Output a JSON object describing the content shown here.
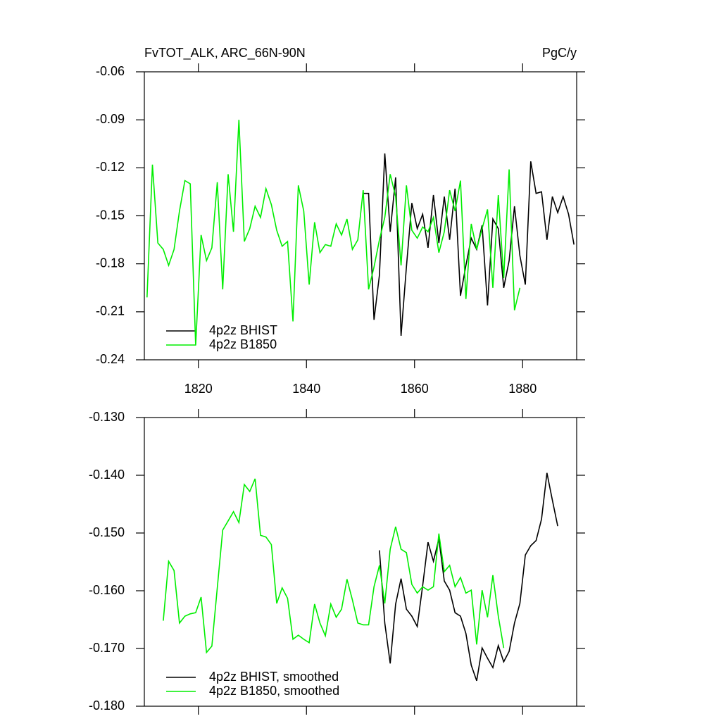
{
  "chart_data": [
    {
      "type": "line",
      "title": "FvTOT_ALK, ARC_66N-90N",
      "units": "PgC/y",
      "xlim": [
        1810,
        1890
      ],
      "xticks": [
        1820,
        1840,
        1860,
        1880
      ],
      "xtick_labels": true,
      "ylim": [
        -0.24,
        -0.06
      ],
      "yticks": [
        -0.24,
        -0.21,
        -0.18,
        -0.15,
        -0.12,
        -0.09,
        -0.06
      ],
      "legend": "lower left",
      "series": [
        {
          "name": "4p2z BHIST",
          "color": "#000000",
          "x": [
            1850.5,
            1851.5,
            1852.5,
            1853.5,
            1854.5,
            1855.5,
            1856.5,
            1857.5,
            1858.5,
            1859.5,
            1860.5,
            1861.5,
            1862.5,
            1863.5,
            1864.5,
            1865.5,
            1866.5,
            1867.5,
            1868.5,
            1869.5,
            1870.5,
            1871.5,
            1872.5,
            1873.5,
            1874.5,
            1875.5,
            1876.5,
            1877.5,
            1878.5,
            1879.5,
            1880.5,
            1881.5,
            1882.5,
            1883.5,
            1884.5,
            1885.5,
            1886.5,
            1887.5,
            1888.5,
            1889.5
          ],
          "values": [
            -0.136,
            -0.136,
            -0.215,
            -0.187,
            -0.111,
            -0.16,
            -0.126,
            -0.225,
            -0.182,
            -0.142,
            -0.158,
            -0.149,
            -0.17,
            -0.137,
            -0.167,
            -0.138,
            -0.165,
            -0.133,
            -0.2,
            -0.181,
            -0.164,
            -0.171,
            -0.156,
            -0.206,
            -0.152,
            -0.158,
            -0.195,
            -0.178,
            -0.144,
            -0.175,
            -0.193,
            -0.116,
            -0.136,
            -0.135,
            -0.165,
            -0.138,
            -0.148,
            -0.138,
            -0.149,
            -0.168
          ]
        },
        {
          "name": "4p2z B1850",
          "color": "#00ee00",
          "x": [
            1810.5,
            1811.5,
            1812.5,
            1813.5,
            1814.5,
            1815.5,
            1816.5,
            1817.5,
            1818.5,
            1819.5,
            1820.5,
            1821.5,
            1822.5,
            1823.5,
            1824.5,
            1825.5,
            1826.5,
            1827.5,
            1828.5,
            1829.5,
            1830.5,
            1831.5,
            1832.5,
            1833.5,
            1834.5,
            1835.5,
            1836.5,
            1837.5,
            1838.5,
            1839.5,
            1840.5,
            1841.5,
            1842.5,
            1843.5,
            1844.5,
            1845.5,
            1846.5,
            1847.5,
            1848.5,
            1849.5,
            1850.5,
            1851.5,
            1852.5,
            1853.5,
            1854.5,
            1855.5,
            1856.5,
            1857.5,
            1858.5,
            1859.5,
            1860.5,
            1861.5,
            1862.5,
            1863.5,
            1864.5,
            1865.5,
            1866.5,
            1867.5,
            1868.5,
            1869.5,
            1870.5,
            1871.5,
            1872.5,
            1873.5,
            1874.5,
            1875.5,
            1876.5,
            1877.5,
            1878.5,
            1879.5
          ],
          "values": [
            -0.201,
            -0.118,
            -0.167,
            -0.171,
            -0.181,
            -0.171,
            -0.147,
            -0.128,
            -0.13,
            -0.231,
            -0.162,
            -0.178,
            -0.17,
            -0.129,
            -0.196,
            -0.124,
            -0.16,
            -0.09,
            -0.166,
            -0.158,
            -0.144,
            -0.151,
            -0.133,
            -0.143,
            -0.159,
            -0.169,
            -0.166,
            -0.216,
            -0.131,
            -0.147,
            -0.193,
            -0.154,
            -0.173,
            -0.168,
            -0.169,
            -0.155,
            -0.162,
            -0.152,
            -0.171,
            -0.165,
            -0.134,
            -0.196,
            -0.182,
            -0.165,
            -0.151,
            -0.124,
            -0.138,
            -0.181,
            -0.131,
            -0.159,
            -0.164,
            -0.157,
            -0.16,
            -0.151,
            -0.173,
            -0.16,
            -0.134,
            -0.147,
            -0.128,
            -0.202,
            -0.155,
            -0.171,
            -0.158,
            -0.146,
            -0.195,
            -0.137,
            -0.189,
            -0.121,
            -0.209,
            -0.195
          ]
        }
      ]
    },
    {
      "type": "line",
      "xlim": [
        1810,
        1890
      ],
      "xticks": [
        1820,
        1840,
        1860,
        1880
      ],
      "xtick_labels": false,
      "ylim": [
        -0.18,
        -0.13
      ],
      "yticks": [
        {
          "value": -0.18,
          "label": "-0.180"
        },
        {
          "value": -0.17,
          "label": "-0.170"
        },
        {
          "value": -0.16,
          "label": "-0.160"
        },
        {
          "value": -0.15,
          "label": "-0.150"
        },
        {
          "value": -0.14,
          "label": "-0.140"
        },
        {
          "value": -0.13,
          "label": "-0.130"
        }
      ],
      "legend": "lower left",
      "series": [
        {
          "name": "4p2z BHIST, smoothed",
          "color": "#000000",
          "x": [
            1853.5,
            1854.5,
            1855.5,
            1856.5,
            1857.5,
            1858.5,
            1859.5,
            1860.5,
            1861.5,
            1862.5,
            1863.5,
            1864.5,
            1865.5,
            1866.5,
            1867.5,
            1868.5,
            1869.5,
            1870.5,
            1871.5,
            1872.5,
            1873.5,
            1874.5,
            1875.5,
            1876.5,
            1877.5,
            1878.5,
            1879.5,
            1880.5,
            1881.5,
            1882.5,
            1883.5,
            1884.5,
            1885.5,
            1886.5
          ],
          "values": [
            -0.153,
            -0.1656,
            -0.1726,
            -0.1623,
            -0.1579,
            -0.1632,
            -0.1644,
            -0.1662,
            -0.1591,
            -0.1516,
            -0.1549,
            -0.151,
            -0.1583,
            -0.1599,
            -0.1638,
            -0.1644,
            -0.1674,
            -0.1729,
            -0.1756,
            -0.1699,
            -0.1717,
            -0.1733,
            -0.1695,
            -0.1723,
            -0.1705,
            -0.1656,
            -0.1622,
            -0.1538,
            -0.1522,
            -0.1513,
            -0.1476,
            -0.1396,
            -0.1443,
            -0.1488
          ]
        },
        {
          "name": "4p2z B1850, smoothed",
          "color": "#00ee00",
          "x": [
            1813.5,
            1814.5,
            1815.5,
            1816.5,
            1817.5,
            1818.5,
            1819.5,
            1820.5,
            1821.5,
            1822.5,
            1823.5,
            1824.5,
            1825.5,
            1826.5,
            1827.5,
            1828.5,
            1829.5,
            1830.5,
            1831.5,
            1832.5,
            1833.5,
            1834.5,
            1835.5,
            1836.5,
            1837.5,
            1838.5,
            1839.5,
            1840.5,
            1841.5,
            1842.5,
            1843.5,
            1844.5,
            1845.5,
            1846.5,
            1847.5,
            1848.5,
            1849.5,
            1850.5,
            1851.5,
            1852.5,
            1853.5,
            1854.5,
            1855.5,
            1856.5,
            1857.5,
            1858.5,
            1859.5,
            1860.5,
            1861.5,
            1862.5,
            1863.5,
            1864.5,
            1865.5,
            1866.5,
            1867.5,
            1868.5,
            1869.5,
            1870.5,
            1871.5,
            1872.5,
            1873.5,
            1874.5,
            1875.5,
            1876.5
          ],
          "values": [
            -0.1652,
            -0.1549,
            -0.1565,
            -0.1656,
            -0.1644,
            -0.164,
            -0.1638,
            -0.1611,
            -0.1707,
            -0.1696,
            -0.1595,
            -0.1495,
            -0.1479,
            -0.1463,
            -0.1482,
            -0.1416,
            -0.1428,
            -0.1406,
            -0.1504,
            -0.1507,
            -0.152,
            -0.1622,
            -0.1595,
            -0.1613,
            -0.1684,
            -0.1677,
            -0.1684,
            -0.169,
            -0.1623,
            -0.1656,
            -0.1678,
            -0.1623,
            -0.1646,
            -0.1632,
            -0.158,
            -0.1616,
            -0.1656,
            -0.1659,
            -0.1659,
            -0.1593,
            -0.1556,
            -0.1622,
            -0.1528,
            -0.1489,
            -0.1528,
            -0.1534,
            -0.1589,
            -0.1604,
            -0.1593,
            -0.1599,
            -0.1593,
            -0.1501,
            -0.1567,
            -0.1556,
            -0.1593,
            -0.1577,
            -0.1604,
            -0.1599,
            -0.1693,
            -0.1599,
            -0.1646,
            -0.1573,
            -0.1644,
            -0.1699
          ]
        }
      ]
    }
  ]
}
